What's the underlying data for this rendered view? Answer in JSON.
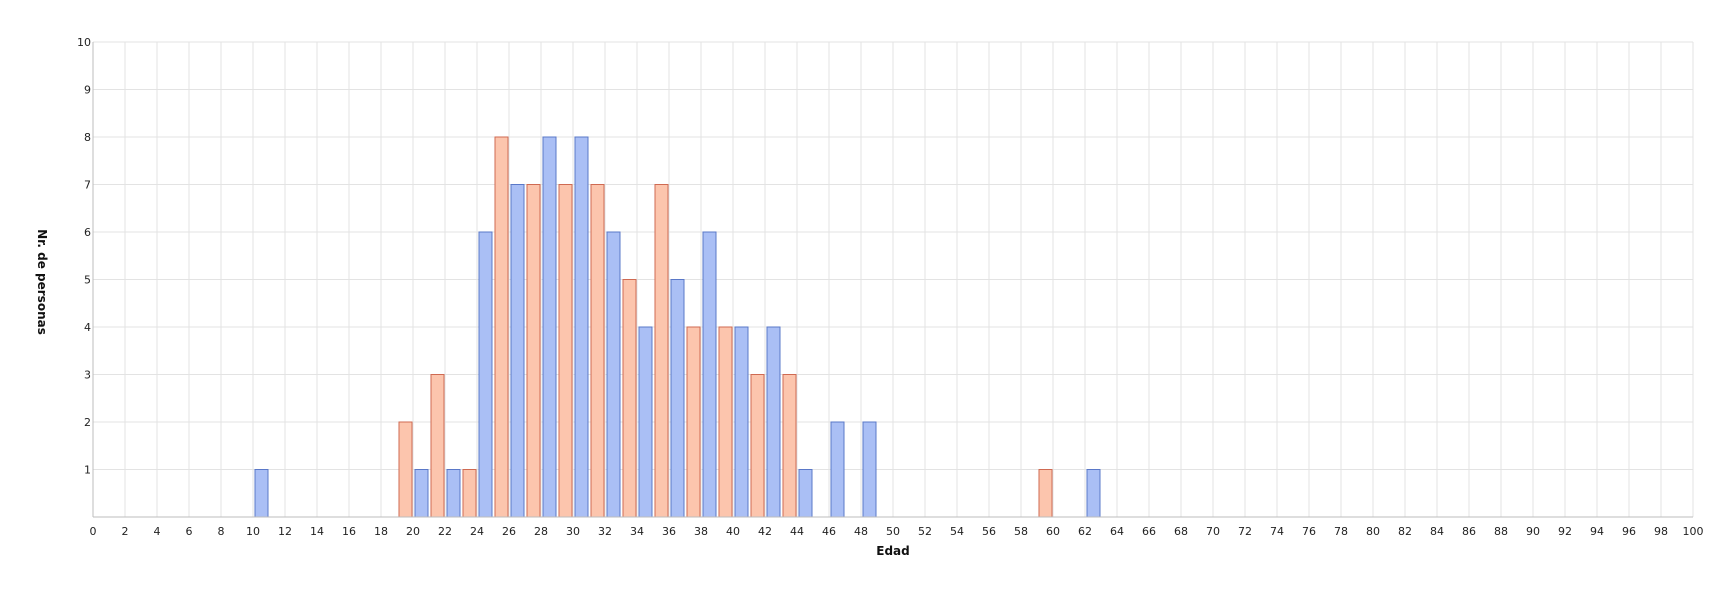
{
  "chart_data": {
    "type": "bar",
    "xlabel": "Edad",
    "ylabel": "Nr. de personas",
    "xlim": [
      0,
      100
    ],
    "ylim": [
      0,
      10
    ],
    "x_ticks": [
      "0",
      "2",
      "4",
      "6",
      "8",
      "10",
      "12",
      "14",
      "16",
      "18",
      "20",
      "22",
      "24",
      "26",
      "28",
      "30",
      "32",
      "34",
      "36",
      "38",
      "40",
      "42",
      "44",
      "46",
      "48",
      "50",
      "52",
      "54",
      "56",
      "58",
      "60",
      "62",
      "64",
      "66",
      "68",
      "70",
      "72",
      "74",
      "76",
      "78",
      "80",
      "82",
      "84",
      "86",
      "88",
      "90",
      "92",
      "94",
      "96",
      "98",
      "100"
    ],
    "y_ticks": [
      "1",
      "2",
      "3",
      "4",
      "5",
      "6",
      "7",
      "8",
      "9",
      "10"
    ],
    "grid": true,
    "legend": "none",
    "series": [
      {
        "color": "#aabff5",
        "border": "#5a78c8",
        "points": [
          {
            "x": 10,
            "y": 1
          },
          {
            "x": 20,
            "y": 1
          },
          {
            "x": 22,
            "y": 1
          },
          {
            "x": 24,
            "y": 6
          },
          {
            "x": 26,
            "y": 7
          },
          {
            "x": 28,
            "y": 8
          },
          {
            "x": 30,
            "y": 8
          },
          {
            "x": 32,
            "y": 6
          },
          {
            "x": 34,
            "y": 4
          },
          {
            "x": 36,
            "y": 5
          },
          {
            "x": 38,
            "y": 6
          },
          {
            "x": 40,
            "y": 4
          },
          {
            "x": 42,
            "y": 4
          },
          {
            "x": 44,
            "y": 1
          },
          {
            "x": 46,
            "y": 2
          },
          {
            "x": 48,
            "y": 2
          },
          {
            "x": 62,
            "y": 1
          }
        ]
      },
      {
        "color": "#fcc5ad",
        "border": "#cf6a52",
        "points": [
          {
            "x": 19,
            "y": 2
          },
          {
            "x": 21,
            "y": 3
          },
          {
            "x": 23,
            "y": 1
          },
          {
            "x": 25,
            "y": 8
          },
          {
            "x": 27,
            "y": 7
          },
          {
            "x": 29,
            "y": 7
          },
          {
            "x": 31,
            "y": 7
          },
          {
            "x": 33,
            "y": 5
          },
          {
            "x": 35,
            "y": 7
          },
          {
            "x": 37,
            "y": 4
          },
          {
            "x": 39,
            "y": 4
          },
          {
            "x": 41,
            "y": 3
          },
          {
            "x": 43,
            "y": 3
          },
          {
            "x": 59,
            "y": 1
          }
        ]
      }
    ]
  }
}
